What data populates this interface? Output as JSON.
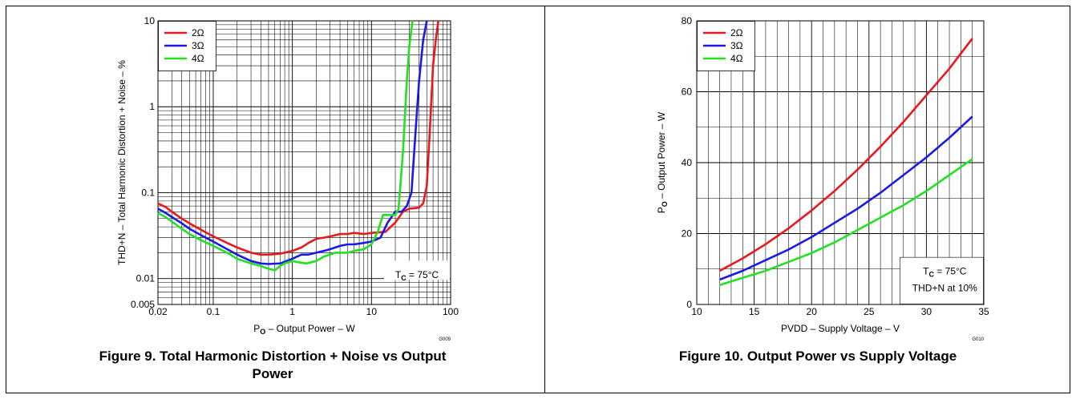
{
  "chart_data": [
    {
      "type": "line",
      "title": "",
      "caption": "Figure 9. Total Harmonic Distortion + Noise vs Output Power",
      "caption_line1": "Figure 9. Total Harmonic Distortion + Noise vs Output",
      "caption_line2": "Power",
      "xlabel_main": "P",
      "xlabel_sub": "O",
      "xlabel_rest": " – Output Power – W",
      "ylabel": "THD+N – Total Harmonic Distortion + Noise – %",
      "xscale": "log",
      "yscale": "log",
      "xlim": [
        0.02,
        100
      ],
      "ylim": [
        0.005,
        10
      ],
      "x_ticks": [
        0.02,
        0.1,
        1,
        10,
        100
      ],
      "x_tick_labels": [
        "0.02",
        "0.1",
        "1",
        "10",
        "100"
      ],
      "y_ticks": [
        0.005,
        0.01,
        0.1,
        1,
        10
      ],
      "y_tick_labels": [
        "0.005",
        "0.01",
        "0.1",
        "1",
        "10"
      ],
      "grid": true,
      "legend_position": "top-left",
      "annotation_main": "T",
      "annotation_sub": "C",
      "annotation_rest": " = 75°C",
      "graph_id": "G009",
      "series": [
        {
          "name": "2Ω",
          "color": "#e8191c",
          "x": [
            0.02,
            0.025,
            0.03,
            0.04,
            0.05,
            0.07,
            0.1,
            0.15,
            0.2,
            0.3,
            0.4,
            0.5,
            0.7,
            1,
            1.3,
            1.6,
            2,
            2.5,
            3,
            3.5,
            4,
            5,
            6,
            8,
            10,
            15,
            20,
            25,
            30,
            35,
            40,
            45,
            50,
            55,
            60,
            65,
            70
          ],
          "y": [
            0.075,
            0.068,
            0.06,
            0.05,
            0.044,
            0.037,
            0.031,
            0.026,
            0.023,
            0.02,
            0.019,
            0.019,
            0.0195,
            0.021,
            0.023,
            0.026,
            0.029,
            0.03,
            0.031,
            0.032,
            0.033,
            0.033,
            0.034,
            0.033,
            0.034,
            0.035,
            0.045,
            0.06,
            0.065,
            0.066,
            0.067,
            0.075,
            0.12,
            0.6,
            3,
            6,
            10
          ]
        },
        {
          "name": "3Ω",
          "color": "#1a1ae6",
          "x": [
            0.02,
            0.025,
            0.03,
            0.04,
            0.05,
            0.07,
            0.1,
            0.15,
            0.2,
            0.3,
            0.4,
            0.5,
            0.7,
            1,
            1.3,
            1.6,
            2,
            2.5,
            3,
            3.5,
            4,
            5,
            6,
            8,
            10,
            13,
            16,
            20,
            24,
            28,
            32,
            36,
            40,
            45,
            50
          ],
          "y": [
            0.065,
            0.058,
            0.052,
            0.044,
            0.038,
            0.032,
            0.027,
            0.022,
            0.019,
            0.016,
            0.015,
            0.0148,
            0.015,
            0.017,
            0.019,
            0.019,
            0.02,
            0.021,
            0.022,
            0.023,
            0.024,
            0.025,
            0.025,
            0.026,
            0.027,
            0.03,
            0.045,
            0.06,
            0.06,
            0.07,
            0.1,
            0.5,
            2,
            6,
            10
          ]
        },
        {
          "name": "4Ω",
          "color": "#22e022",
          "x": [
            0.02,
            0.025,
            0.03,
            0.04,
            0.05,
            0.07,
            0.1,
            0.15,
            0.2,
            0.3,
            0.4,
            0.5,
            0.6,
            0.7,
            0.8,
            1,
            1.2,
            1.5,
            2,
            2.5,
            3,
            3.5,
            4,
            5,
            6,
            8,
            10,
            12,
            14,
            16,
            18,
            20,
            22,
            25,
            28,
            30,
            33
          ],
          "y": [
            0.058,
            0.052,
            0.046,
            0.038,
            0.033,
            0.028,
            0.024,
            0.02,
            0.017,
            0.015,
            0.014,
            0.013,
            0.0125,
            0.014,
            0.015,
            0.016,
            0.0155,
            0.015,
            0.016,
            0.018,
            0.019,
            0.02,
            0.02,
            0.02,
            0.021,
            0.022,
            0.025,
            0.035,
            0.055,
            0.055,
            0.055,
            0.055,
            0.065,
            0.3,
            2,
            5,
            10
          ]
        }
      ]
    },
    {
      "type": "line",
      "title": "",
      "caption": "Figure 10. Output Power vs Supply Voltage",
      "xlabel": "PVDD – Supply Voltage – V",
      "ylabel_main": "P",
      "ylabel_sub": "O",
      "ylabel_rest": " – Output Power – W",
      "xscale": "linear",
      "yscale": "linear",
      "xlim": [
        10,
        35
      ],
      "ylim": [
        0,
        80
      ],
      "x_ticks": [
        10,
        15,
        20,
        25,
        30,
        35
      ],
      "x_tick_labels": [
        "10",
        "15",
        "20",
        "25",
        "30",
        "35"
      ],
      "y_ticks": [
        0,
        20,
        40,
        60,
        80
      ],
      "y_tick_labels": [
        "0",
        "20",
        "40",
        "60",
        "80"
      ],
      "grid": true,
      "legend_position": "top-left",
      "annotation_main": "T",
      "annotation_sub": "C",
      "annotation_rest": " = 75°C",
      "annotation_line2": "THD+N at 10%",
      "graph_id": "G010",
      "series": [
        {
          "name": "2Ω",
          "color": "#e8191c",
          "x": [
            12,
            14,
            16,
            18,
            20,
            22,
            24,
            26,
            28,
            30,
            32,
            34
          ],
          "y": [
            9.5,
            13,
            17,
            21.5,
            26.5,
            32,
            38,
            44.5,
            51.5,
            59,
            66.5,
            75
          ]
        },
        {
          "name": "3Ω",
          "color": "#1a1ae6",
          "x": [
            12,
            14,
            16,
            18,
            20,
            22,
            24,
            26,
            28,
            30,
            32,
            34
          ],
          "y": [
            7,
            9.5,
            12.5,
            15.5,
            19,
            23,
            27,
            31.5,
            36.5,
            41.5,
            47,
            53
          ]
        },
        {
          "name": "4Ω",
          "color": "#22e022",
          "x": [
            12,
            14,
            16,
            18,
            20,
            22,
            24,
            26,
            28,
            30,
            32,
            34
          ],
          "y": [
            5.5,
            7.5,
            9.5,
            12,
            14.5,
            17.5,
            21,
            24.5,
            28,
            32,
            36.5,
            41
          ]
        }
      ]
    }
  ]
}
